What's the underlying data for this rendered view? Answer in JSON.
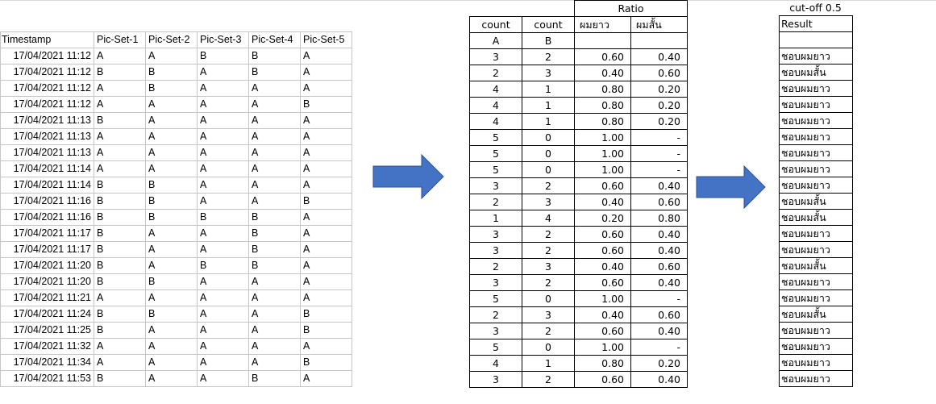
{
  "raw_table": {
    "headers": [
      "Timestamp",
      "Pic-Set-1",
      "Pic-Set-2",
      "Pic-Set-3",
      "Pic-Set-4",
      "Pic-Set-5"
    ],
    "rows": [
      [
        "17/04/2021 11:12",
        "A",
        "A",
        "B",
        "B",
        "A"
      ],
      [
        "17/04/2021 11:12",
        "B",
        "B",
        "A",
        "B",
        "A"
      ],
      [
        "17/04/2021 11:12",
        "A",
        "B",
        "A",
        "A",
        "A"
      ],
      [
        "17/04/2021 11:12",
        "A",
        "A",
        "A",
        "A",
        "B"
      ],
      [
        "17/04/2021 11:13",
        "B",
        "A",
        "A",
        "A",
        "A"
      ],
      [
        "17/04/2021 11:13",
        "A",
        "A",
        "A",
        "A",
        "A"
      ],
      [
        "17/04/2021 11:13",
        "A",
        "A",
        "A",
        "A",
        "A"
      ],
      [
        "17/04/2021 11:14",
        "A",
        "A",
        "A",
        "A",
        "A"
      ],
      [
        "17/04/2021 11:14",
        "B",
        "B",
        "A",
        "A",
        "A"
      ],
      [
        "17/04/2021 11:16",
        "B",
        "B",
        "A",
        "A",
        "B"
      ],
      [
        "17/04/2021 11:16",
        "B",
        "B",
        "B",
        "B",
        "A"
      ],
      [
        "17/04/2021 11:17",
        "B",
        "A",
        "A",
        "B",
        "A"
      ],
      [
        "17/04/2021 11:17",
        "B",
        "A",
        "A",
        "B",
        "A"
      ],
      [
        "17/04/2021 11:20",
        "B",
        "A",
        "B",
        "B",
        "A"
      ],
      [
        "17/04/2021 11:20",
        "B",
        "B",
        "A",
        "A",
        "A"
      ],
      [
        "17/04/2021 11:21",
        "A",
        "A",
        "A",
        "A",
        "A"
      ],
      [
        "17/04/2021 11:24",
        "B",
        "B",
        "A",
        "A",
        "B"
      ],
      [
        "17/04/2021 11:25",
        "B",
        "A",
        "A",
        "A",
        "B"
      ],
      [
        "17/04/2021 11:32",
        "A",
        "A",
        "A",
        "A",
        "A"
      ],
      [
        "17/04/2021 11:34",
        "A",
        "A",
        "A",
        "A",
        "B"
      ],
      [
        "17/04/2021 11:53",
        "B",
        "A",
        "A",
        "B",
        "A"
      ]
    ]
  },
  "count_table": {
    "ratio_title": "Ratio",
    "headers": [
      "count",
      "count",
      "ผมยาว",
      "ผมสั้น"
    ],
    "subheaders": [
      "A",
      "B",
      "",
      ""
    ],
    "rows": [
      [
        "3",
        "2",
        "0.60",
        "0.40"
      ],
      [
        "2",
        "3",
        "0.40",
        "0.60"
      ],
      [
        "4",
        "1",
        "0.80",
        "0.20"
      ],
      [
        "4",
        "1",
        "0.80",
        "0.20"
      ],
      [
        "4",
        "1",
        "0.80",
        "0.20"
      ],
      [
        "5",
        "0",
        "1.00",
        "-"
      ],
      [
        "5",
        "0",
        "1.00",
        "-"
      ],
      [
        "5",
        "0",
        "1.00",
        "-"
      ],
      [
        "3",
        "2",
        "0.60",
        "0.40"
      ],
      [
        "2",
        "3",
        "0.40",
        "0.60"
      ],
      [
        "1",
        "4",
        "0.20",
        "0.80"
      ],
      [
        "3",
        "2",
        "0.60",
        "0.40"
      ],
      [
        "3",
        "2",
        "0.60",
        "0.40"
      ],
      [
        "2",
        "3",
        "0.40",
        "0.60"
      ],
      [
        "3",
        "2",
        "0.60",
        "0.40"
      ],
      [
        "5",
        "0",
        "1.00",
        "-"
      ],
      [
        "2",
        "3",
        "0.40",
        "0.60"
      ],
      [
        "3",
        "2",
        "0.60",
        "0.40"
      ],
      [
        "5",
        "0",
        "1.00",
        "-"
      ],
      [
        "4",
        "1",
        "0.80",
        "0.20"
      ],
      [
        "3",
        "2",
        "0.60",
        "0.40"
      ]
    ]
  },
  "result_table": {
    "cutoff_label": "cut-off 0.5",
    "header": "Result",
    "rows": [
      "ชอบผมยาว",
      "ชอบผมสั้น",
      "ชอบผมยาว",
      "ชอบผมยาว",
      "ชอบผมยาว",
      "ชอบผมยาว",
      "ชอบผมยาว",
      "ชอบผมยาว",
      "ชอบผมยาว",
      "ชอบผมสั้น",
      "ชอบผมสั้น",
      "ชอบผมยาว",
      "ชอบผมยาว",
      "ชอบผมสั้น",
      "ชอบผมยาว",
      "ชอบผมยาว",
      "ชอบผมสั้น",
      "ชอบผมยาว",
      "ชอบผมยาว",
      "ชอบผมยาว",
      "ชอบผมยาว"
    ]
  },
  "colors": {
    "arrow_fill": "#4472c4",
    "arrow_stroke": "#2f528f",
    "raw_grid": "#c6c6c6"
  },
  "icons": [
    "right-arrow-icon",
    "right-arrow-icon"
  ]
}
